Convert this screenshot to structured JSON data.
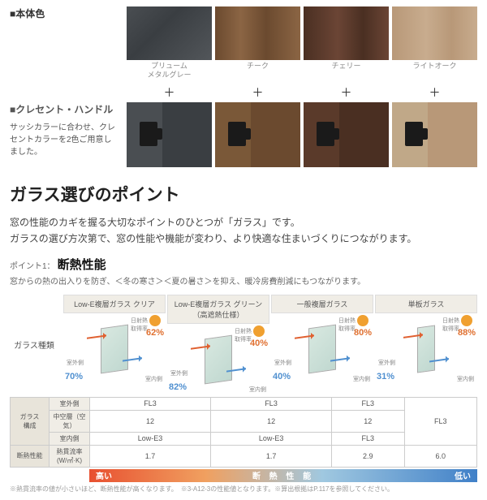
{
  "body_color": {
    "label": "■本体色",
    "swatches": [
      {
        "name": "プリューム\nメタルグレー",
        "bg": "linear-gradient(135deg,#4a4e52,#3a3e42 40%,#52565a)"
      },
      {
        "name": "チーク",
        "bg": "linear-gradient(90deg,#6b4a2f,#8b6544 30%,#6b4a2f 60%,#8b6544)"
      },
      {
        "name": "チェリー",
        "bg": "linear-gradient(90deg,#4a2f22,#6b4535 40%,#4a2f22 70%,#6b4535)"
      },
      {
        "name": "ライトオーク",
        "bg": "linear-gradient(90deg,#b89878,#c8ac8e 40%,#b89878 70%,#c8ac8e)"
      }
    ]
  },
  "crescent": {
    "label": "■クレセント・ハンドル",
    "desc": "サッシカラーに合わせ、クレセントカラーを2色ご用意しました。",
    "handles": [
      {
        "bg": "#4a4e52",
        "panel": "#3a3e42"
      },
      {
        "bg": "#7a5838",
        "panel": "#6b4a2f"
      },
      {
        "bg": "#5a3a2a",
        "panel": "#4a2f22"
      },
      {
        "bg": "#c0a888",
        "panel": "#b89878"
      }
    ]
  },
  "main_title": "ガラス選びのポイント",
  "body_text_1": "窓の性能のカギを握る大切なポイントのひとつが「ガラス」です。",
  "body_text_2": "ガラスの選び方次第で、窓の性能や機能が変わり、より快適な住まいづくりにつながります。",
  "point1": {
    "prefix": "ポイント1：",
    "title": "断熱性能",
    "desc": "窓からの熱の出入りを防ぎ、＜冬の寒さ＞＜夏の暑さ＞を抑え、暖冷房費削減にもつながります。"
  },
  "glass_row_label": "ガラス種類",
  "glass_types": [
    {
      "head": "Low-E複層ガラス クリア",
      "solar_pct": "62%",
      "trans_pct": "70%",
      "single": false
    },
    {
      "head": "Low-E複層ガラス グリーン（高遮熱仕様）",
      "solar_pct": "40%",
      "trans_pct": "82%",
      "single": false
    },
    {
      "head": "一般複層ガラス",
      "solar_pct": "80%",
      "trans_pct": "40%",
      "single": false
    },
    {
      "head": "単板ガラス",
      "solar_pct": "88%",
      "trans_pct": "31%",
      "single": true
    }
  ],
  "labels": {
    "solar_gain": "日射熱\n取得率",
    "outdoor": "室外側",
    "indoor": "室内側"
  },
  "composition_table": {
    "group_label": "ガラス\n構成",
    "rows": [
      {
        "label": "室外側",
        "cells": [
          "FL3",
          "FL3",
          "FL3",
          ""
        ]
      },
      {
        "label": "中空層（空気）",
        "cells": [
          "12",
          "12",
          "12",
          "FL3"
        ]
      },
      {
        "label": "室内側",
        "cells": [
          "Low-E3",
          "Low-E3",
          "FL3",
          ""
        ]
      }
    ],
    "thermal_group": "断熱性能",
    "thermal_label": "熱貫流率\n(W/㎡·K)",
    "thermal_cells": [
      "1.7",
      "1.7",
      "2.9",
      "6.0"
    ]
  },
  "gradient": {
    "left": "高い",
    "mid": "断 熱 性 能",
    "right": "低い"
  },
  "footnote": "※熱貫流率の値が小さいほど、断熱性能が高くなります。　※3-A12-3の性能値となります。※算出根拠はP.117を参照してください。"
}
